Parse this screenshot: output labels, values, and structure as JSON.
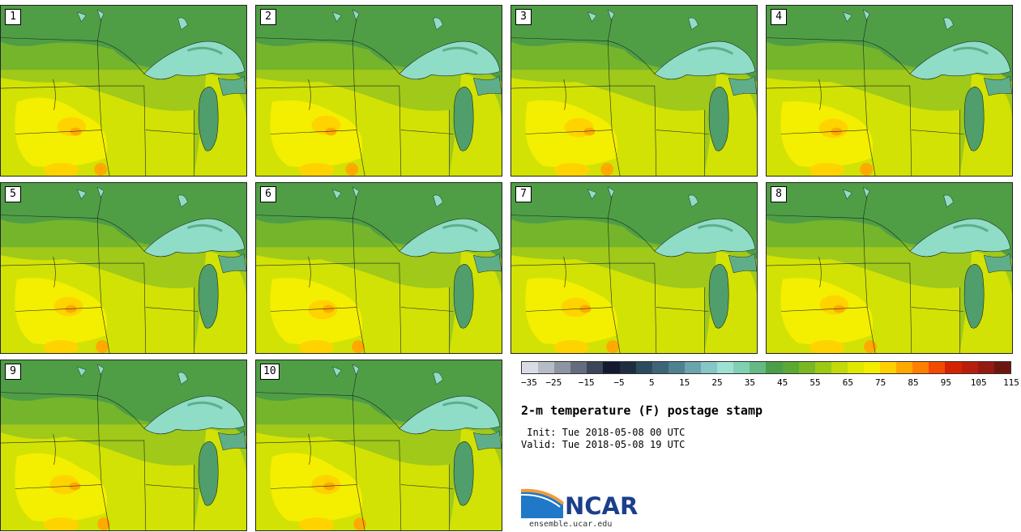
{
  "product": {
    "title": "2-m temperature (F) postage stamp",
    "init_label": " Init:",
    "init_value": "Tue 2018-05-08 00 UTC",
    "valid_label": "Valid:",
    "valid_value": "Tue 2018-05-08 19 UTC"
  },
  "members": [
    {
      "label": "1"
    },
    {
      "label": "2"
    },
    {
      "label": "3"
    },
    {
      "label": "4"
    },
    {
      "label": "5"
    },
    {
      "label": "6"
    },
    {
      "label": "7"
    },
    {
      "label": "8"
    },
    {
      "label": "9"
    },
    {
      "label": "10"
    }
  ],
  "colorbar": {
    "units": "F",
    "min": -35,
    "max": 120,
    "step": 5,
    "tick_labels": [
      "−35",
      "−25",
      "−15",
      "−5",
      "5",
      "15",
      "25",
      "35",
      "45",
      "55",
      "65",
      "75",
      "85",
      "95",
      "105",
      "115"
    ],
    "colors": [
      "#d9dde3",
      "#b6bcc6",
      "#8d95a3",
      "#646d80",
      "#3c4559",
      "#141b30",
      "#1f2d40",
      "#2d4b5e",
      "#3d6577",
      "#4f8190",
      "#6aa4ad",
      "#86c6c5",
      "#9fe0d5",
      "#7fd1b1",
      "#64b984",
      "#4a9f48",
      "#5aa935",
      "#79b823",
      "#9cc914",
      "#c2d90a",
      "#e1e800",
      "#f3ee00",
      "#ffd000",
      "#ffa800",
      "#ff7f00",
      "#f24a00",
      "#d22400",
      "#b81e0c",
      "#951a10",
      "#6b170f"
    ]
  },
  "map_colors": {
    "cool_green": "#4f9e45",
    "mid_green": "#75b52c",
    "light_green": "#a0c919",
    "yellow_green": "#d2e205",
    "yellow": "#f4ee00",
    "warm_yellow": "#ffd300",
    "orange": "#ffaa00",
    "lake": "#8fdcc7",
    "lake_shade": "#5fae8a",
    "lake_michigan": "#4f9e6b",
    "border": "#1e2a1e"
  },
  "branding": {
    "logo_text": "NCAR",
    "logo_icon": "ncar-arc-logo-icon",
    "url": "ensemble.ucar.edu"
  }
}
